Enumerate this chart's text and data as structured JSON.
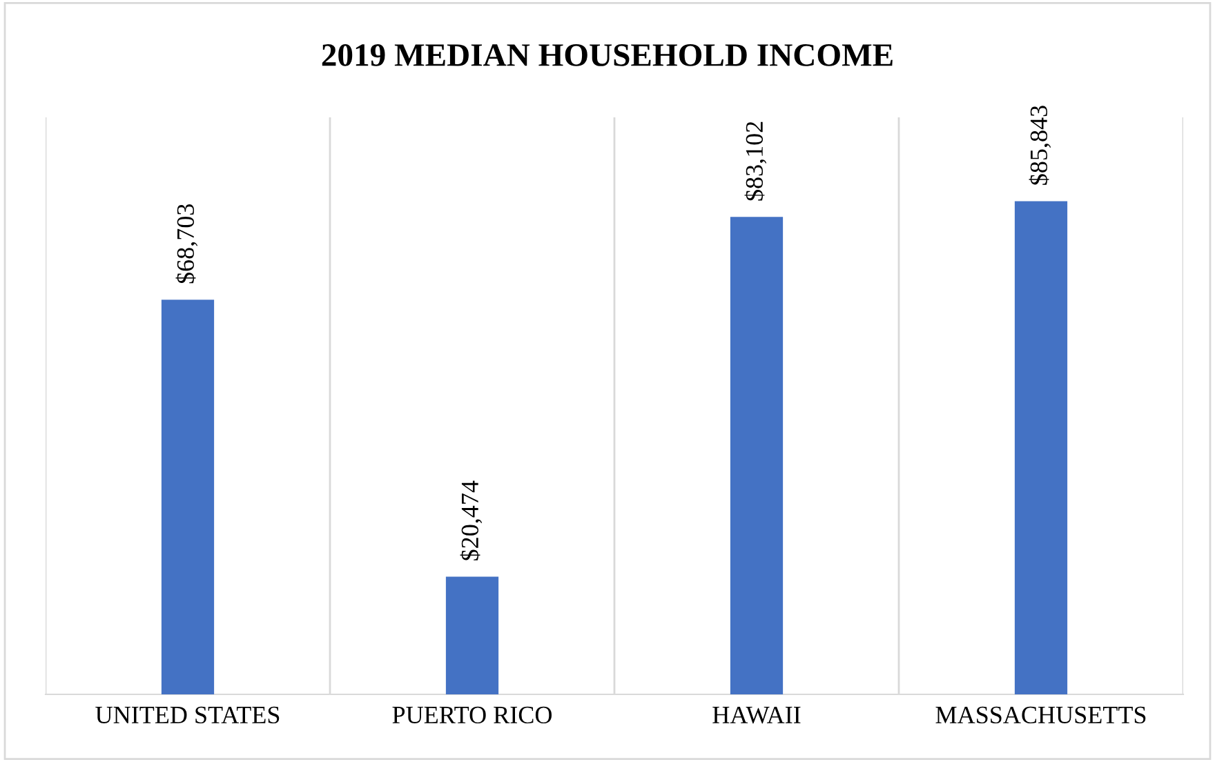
{
  "chart_data": {
    "type": "bar",
    "title": "2019 MEDIAN HOUSEHOLD INCOME",
    "categories": [
      "UNITED STATES",
      "PUERTO RICO",
      "HAWAII",
      "MASSACHUSETTS"
    ],
    "values": [
      68703,
      20474,
      83102,
      85843
    ],
    "value_labels": [
      "$68,703",
      "$20,474",
      "$83,102",
      "$85,843"
    ],
    "color": "#4472c4",
    "grid": "x"
  }
}
